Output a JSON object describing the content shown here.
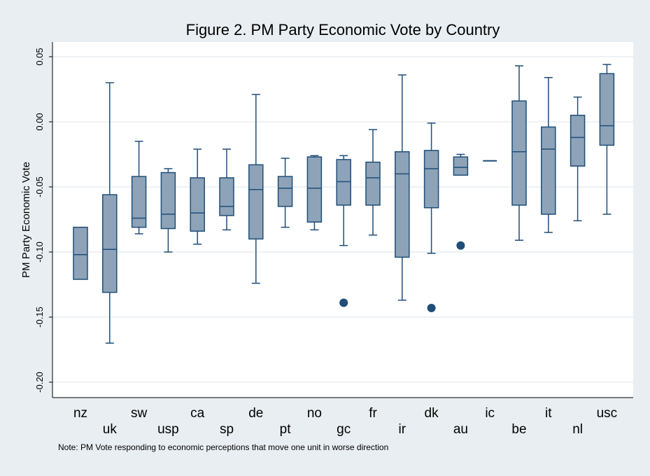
{
  "chart_data": {
    "type": "box",
    "title": "Figure 2. PM Party Economic Vote by Country",
    "ylabel": "PM Party Economic Vote",
    "xlabel": "",
    "ylim": [
      -0.22,
      0.06
    ],
    "yticks": [
      0.05,
      0.0,
      -0.05,
      -0.1,
      -0.15,
      -0.2
    ],
    "ytick_labels": [
      "0.05",
      "0.00",
      "-0.05",
      "-0.10",
      "-0.15",
      "-0.20"
    ],
    "grid": true,
    "box_color": "#8ea3b8",
    "line_color": "#1f4e79",
    "categories": [
      "nz",
      "uk",
      "sw",
      "usp",
      "ca",
      "sp",
      "de",
      "pt",
      "no",
      "gc",
      "fr",
      "ir",
      "dk",
      "au",
      "ic",
      "be",
      "it",
      "nl",
      "usc"
    ],
    "boxes": [
      {
        "label": "nz",
        "whisker_low": -0.121,
        "q1": -0.121,
        "median": -0.102,
        "q3": -0.081,
        "whisker_high": -0.081,
        "outliers": []
      },
      {
        "label": "uk",
        "whisker_low": -0.17,
        "q1": -0.131,
        "median": -0.098,
        "q3": -0.056,
        "whisker_high": 0.03,
        "outliers": []
      },
      {
        "label": "sw",
        "whisker_low": -0.086,
        "q1": -0.081,
        "median": -0.074,
        "q3": -0.042,
        "whisker_high": -0.015,
        "outliers": []
      },
      {
        "label": "usp",
        "whisker_low": -0.1,
        "q1": -0.082,
        "median": -0.071,
        "q3": -0.039,
        "whisker_high": -0.036,
        "outliers": []
      },
      {
        "label": "ca",
        "whisker_low": -0.094,
        "q1": -0.084,
        "median": -0.07,
        "q3": -0.043,
        "whisker_high": -0.021,
        "outliers": []
      },
      {
        "label": "sp",
        "whisker_low": -0.083,
        "q1": -0.072,
        "median": -0.065,
        "q3": -0.043,
        "whisker_high": -0.021,
        "outliers": []
      },
      {
        "label": "de",
        "whisker_low": -0.124,
        "q1": -0.09,
        "median": -0.052,
        "q3": -0.033,
        "whisker_high": 0.021,
        "outliers": []
      },
      {
        "label": "pt",
        "whisker_low": -0.081,
        "q1": -0.065,
        "median": -0.051,
        "q3": -0.042,
        "whisker_high": -0.028,
        "outliers": []
      },
      {
        "label": "no",
        "whisker_low": -0.083,
        "q1": -0.077,
        "median": -0.051,
        "q3": -0.027,
        "whisker_high": -0.026,
        "outliers": []
      },
      {
        "label": "gc",
        "whisker_low": -0.095,
        "q1": -0.064,
        "median": -0.046,
        "q3": -0.029,
        "whisker_high": -0.026,
        "outliers": [
          -0.139
        ]
      },
      {
        "label": "fr",
        "whisker_low": -0.087,
        "q1": -0.064,
        "median": -0.043,
        "q3": -0.031,
        "whisker_high": -0.006,
        "outliers": []
      },
      {
        "label": "ir",
        "whisker_low": -0.137,
        "q1": -0.104,
        "median": -0.04,
        "q3": -0.023,
        "whisker_high": 0.036,
        "outliers": []
      },
      {
        "label": "dk",
        "whisker_low": -0.101,
        "q1": -0.066,
        "median": -0.036,
        "q3": -0.022,
        "whisker_high": -0.001,
        "outliers": [
          -0.143
        ]
      },
      {
        "label": "au",
        "whisker_low": -0.041,
        "q1": -0.041,
        "median": -0.035,
        "q3": -0.027,
        "whisker_high": -0.025,
        "outliers": [
          -0.095
        ]
      },
      {
        "label": "ic",
        "whisker_low": -0.03,
        "q1": -0.03,
        "median": -0.03,
        "q3": -0.03,
        "whisker_high": -0.03,
        "outliers": []
      },
      {
        "label": "be",
        "whisker_low": -0.091,
        "q1": -0.064,
        "median": -0.023,
        "q3": 0.016,
        "whisker_high": 0.043,
        "outliers": []
      },
      {
        "label": "it",
        "whisker_low": -0.085,
        "q1": -0.071,
        "median": -0.021,
        "q3": -0.004,
        "whisker_high": 0.034,
        "outliers": []
      },
      {
        "label": "nl",
        "whisker_low": -0.076,
        "q1": -0.034,
        "median": -0.012,
        "q3": 0.005,
        "whisker_high": 0.019,
        "outliers": []
      },
      {
        "label": "usc",
        "whisker_low": -0.071,
        "q1": -0.018,
        "median": -0.003,
        "q3": 0.037,
        "whisker_high": 0.044,
        "outliers": []
      }
    ],
    "note": "Note: PM Vote responding to economic perceptions that move one unit in worse direction"
  }
}
